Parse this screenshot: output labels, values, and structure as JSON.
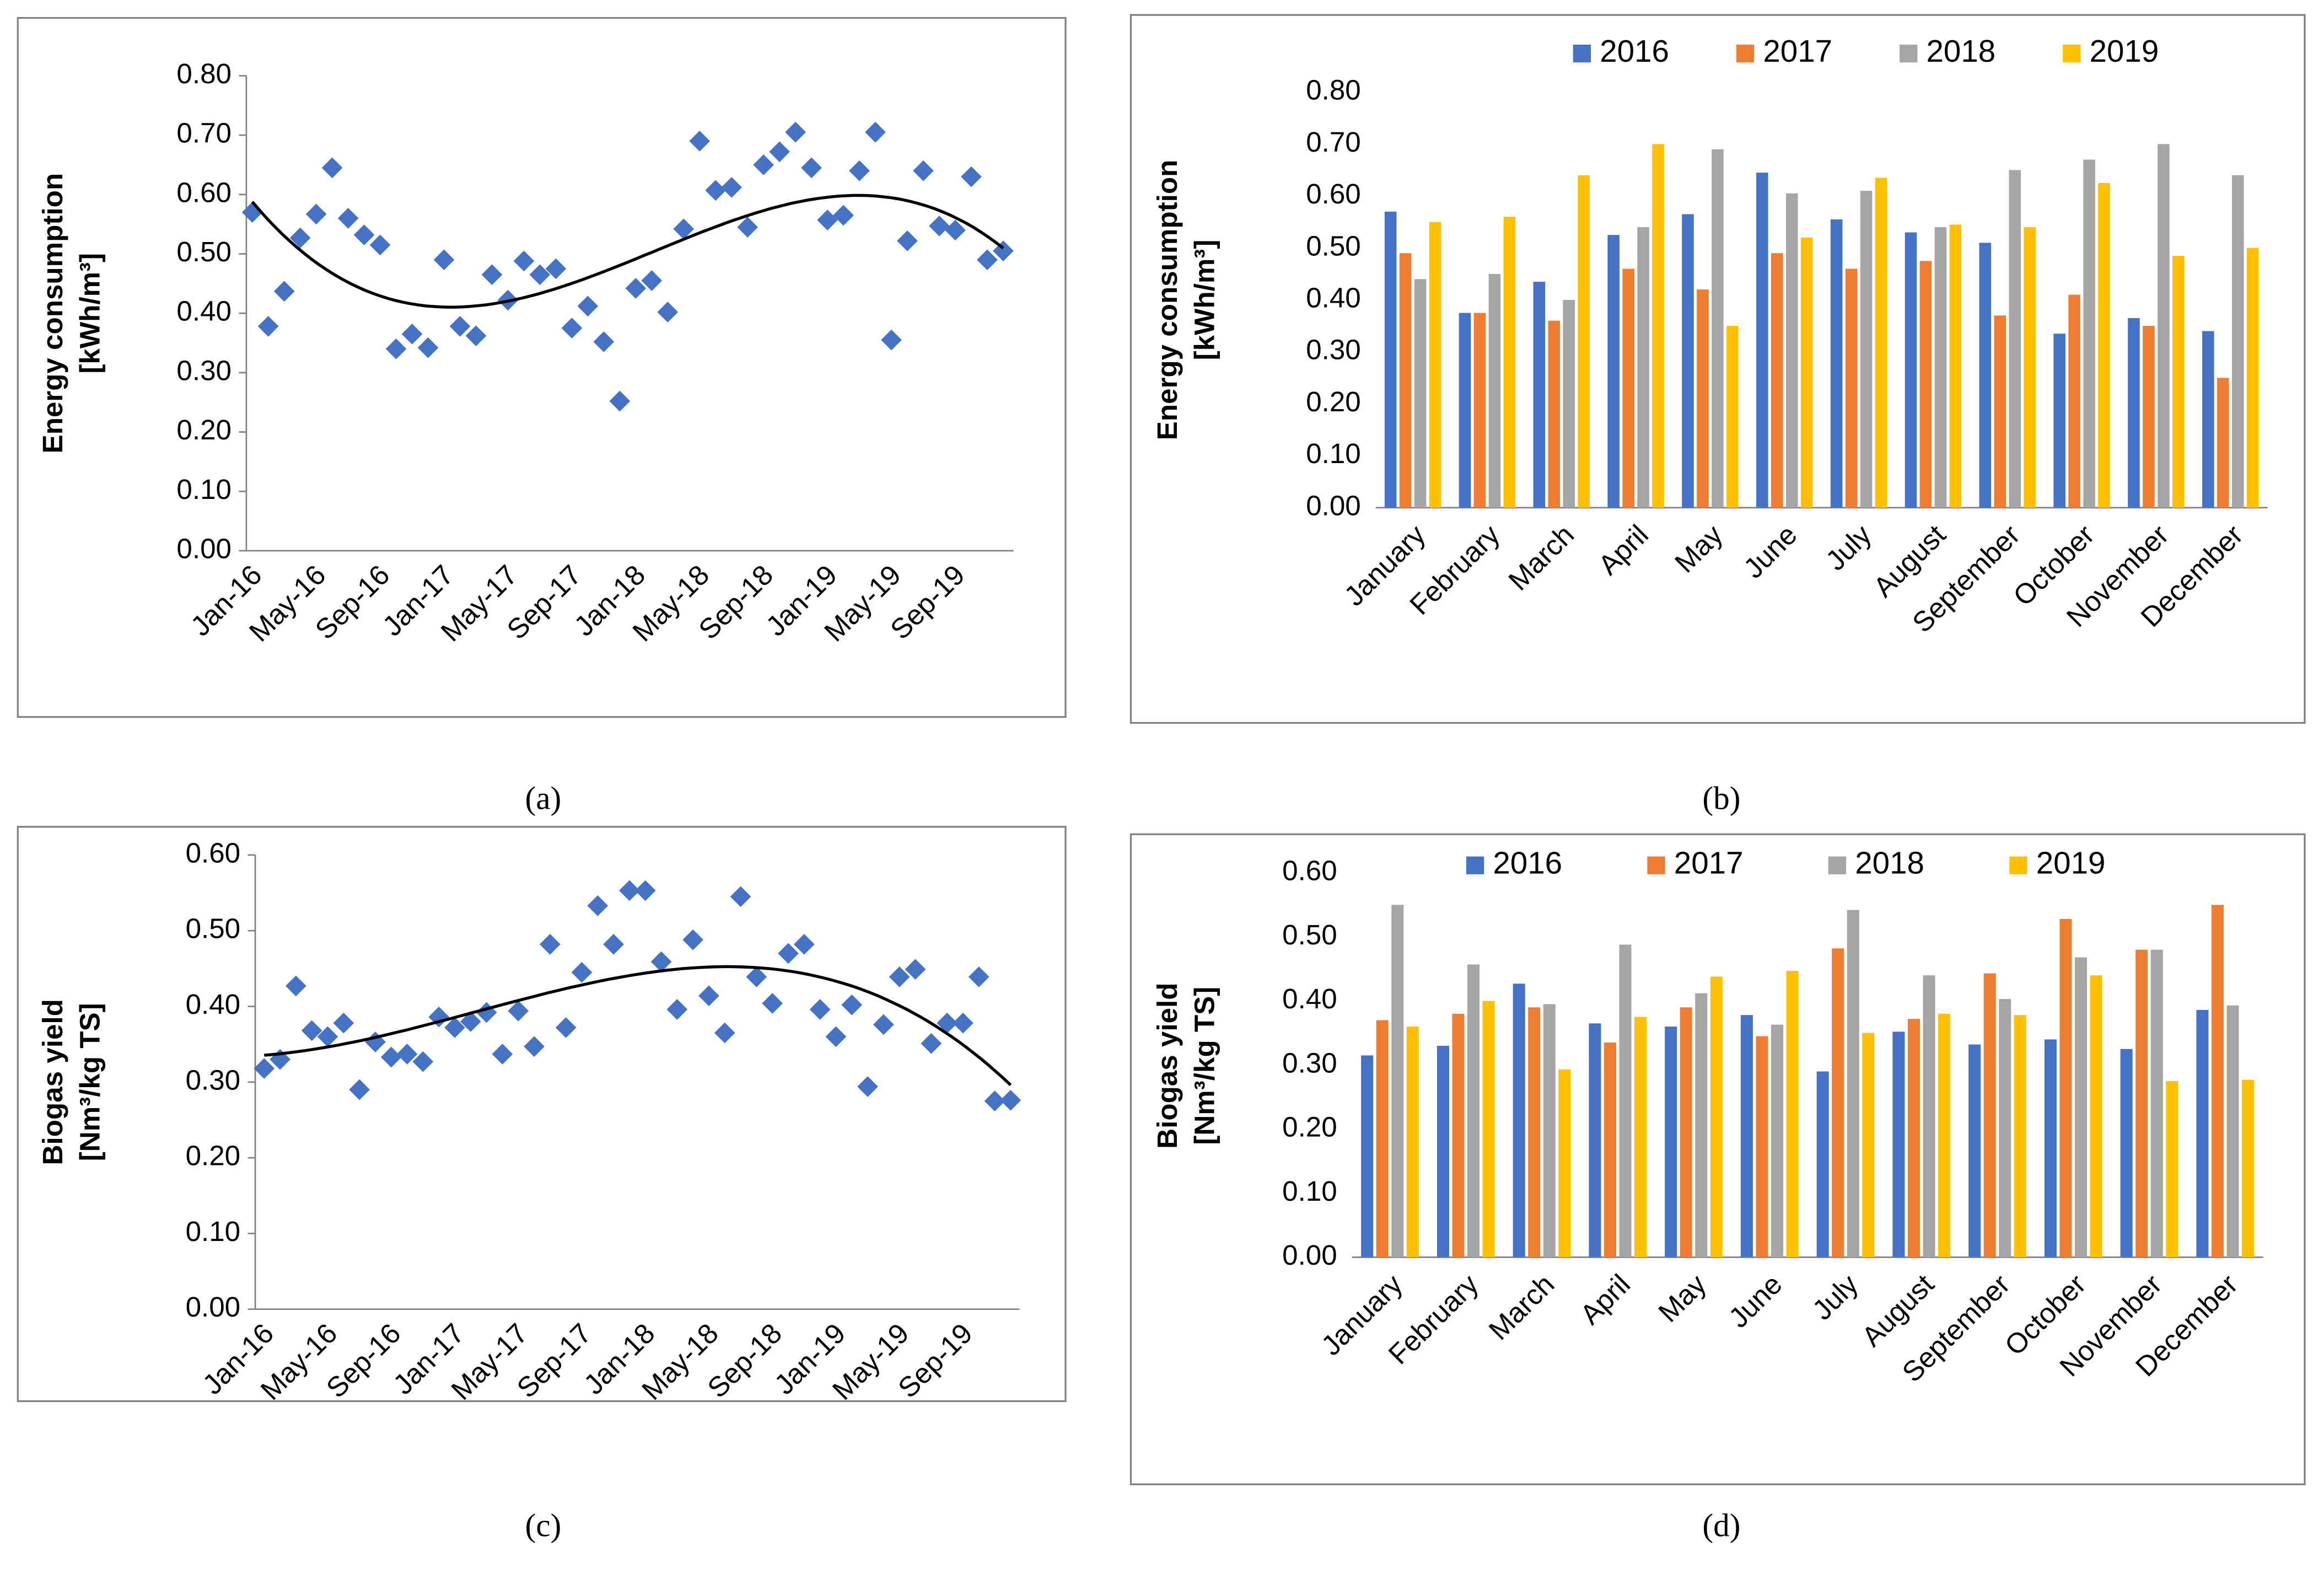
{
  "chart_data": [
    {
      "type": "scatter",
      "caption": "(a)",
      "ylabel": [
        "Energy consumption",
        "[kWh/m³]"
      ],
      "color": "#4472c4",
      "trendline": {
        "order": 3
      },
      "categories": [
        "Jan-16",
        null,
        null,
        null,
        "May-16",
        null,
        null,
        null,
        "Sep-16",
        null,
        null,
        null,
        "Jan-17",
        null,
        null,
        null,
        "May-17",
        null,
        null,
        null,
        "Sep-17",
        null,
        null,
        null,
        "Jan-18",
        null,
        null,
        null,
        "May-18",
        null,
        null,
        null,
        "Sep-18",
        null,
        null,
        null,
        "Jan-19",
        null,
        null,
        null,
        "May-19",
        null,
        null,
        null,
        "Sep-19",
        null,
        null,
        null
      ],
      "values": [
        0.57,
        0.378,
        0.437,
        0.527,
        0.567,
        0.645,
        0.56,
        0.532,
        0.515,
        0.34,
        0.365,
        0.342,
        0.49,
        0.378,
        0.362,
        0.465,
        0.422,
        0.488,
        0.465,
        0.475,
        0.375,
        0.412,
        0.352,
        0.252,
        0.442,
        0.455,
        0.402,
        0.542,
        0.69,
        0.607,
        0.612,
        0.545,
        0.65,
        0.672,
        0.705,
        0.645,
        0.557,
        0.565,
        0.64,
        0.705,
        0.355,
        0.522,
        0.64,
        0.547,
        0.54,
        0.63,
        0.49,
        0.505
      ],
      "ylim": [
        0,
        0.8
      ],
      "yticks": [
        {
          "value": 0,
          "label": "0.00"
        },
        {
          "value": 0.1,
          "label": "0.10"
        },
        {
          "value": 0.2,
          "label": "0.20"
        },
        {
          "value": 0.3,
          "label": "0.30"
        },
        {
          "value": 0.4,
          "label": "0.40"
        },
        {
          "value": 0.5,
          "label": "0.50"
        },
        {
          "value": 0.6,
          "label": "0.60"
        },
        {
          "value": 0.7,
          "label": "0.70"
        },
        {
          "value": 0.8,
          "label": "0.80"
        }
      ]
    },
    {
      "type": "bar",
      "caption": "(b)",
      "ylabel": [
        "Energy consumption",
        "[kWh/m³]"
      ],
      "grid": false,
      "legend": "top",
      "categories": [
        "January",
        "February",
        "March",
        "April",
        "May",
        "June",
        "July",
        "August",
        "September",
        "October",
        "November",
        "December"
      ],
      "series": [
        {
          "name": "2016",
          "color": "#4472c4",
          "values": [
            0.57,
            0.375,
            0.435,
            0.525,
            0.565,
            0.645,
            0.555,
            0.53,
            0.51,
            0.335,
            0.365,
            0.34
          ]
        },
        {
          "name": "2017",
          "color": "#ed7d31",
          "values": [
            0.49,
            0.375,
            0.36,
            0.46,
            0.42,
            0.49,
            0.46,
            0.475,
            0.37,
            0.41,
            0.35,
            0.25
          ]
        },
        {
          "name": "2018",
          "color": "#a5a5a5",
          "values": [
            0.44,
            0.45,
            0.4,
            0.54,
            0.69,
            0.605,
            0.61,
            0.54,
            0.65,
            0.67,
            0.7,
            0.64
          ]
        },
        {
          "name": "2019",
          "color": "#ffc000",
          "values": [
            0.55,
            0.56,
            0.64,
            0.7,
            0.35,
            0.52,
            0.635,
            0.545,
            0.54,
            0.625,
            0.485,
            0.5
          ]
        }
      ],
      "ylim": [
        0,
        0.8
      ],
      "yticks": [
        {
          "value": 0,
          "label": "0.00"
        },
        {
          "value": 0.1,
          "label": "0.10"
        },
        {
          "value": 0.2,
          "label": "0.20"
        },
        {
          "value": 0.3,
          "label": "0.30"
        },
        {
          "value": 0.4,
          "label": "0.40"
        },
        {
          "value": 0.5,
          "label": "0.50"
        },
        {
          "value": 0.6,
          "label": "0.60"
        },
        {
          "value": 0.7,
          "label": "0.70"
        },
        {
          "value": 0.8,
          "label": "0.80"
        }
      ]
    },
    {
      "type": "scatter",
      "caption": "(c)",
      "ylabel": [
        "Biogas yield",
        "[Nm³/kg TS]"
      ],
      "color": "#4472c4",
      "trendline": {
        "order": 3
      },
      "categories": [
        "Jan-16",
        null,
        null,
        null,
        "May-16",
        null,
        null,
        null,
        "Sep-16",
        null,
        null,
        null,
        "Jan-17",
        null,
        null,
        null,
        "May-17",
        null,
        null,
        null,
        "Sep-17",
        null,
        null,
        null,
        "Jan-18",
        null,
        null,
        null,
        "May-18",
        null,
        null,
        null,
        "Sep-18",
        null,
        null,
        null,
        "Jan-19",
        null,
        null,
        null,
        "May-19",
        null,
        null,
        null,
        "Sep-19",
        null,
        null,
        null
      ],
      "values": [
        0.318,
        0.33,
        0.427,
        0.368,
        0.36,
        0.378,
        0.29,
        0.353,
        0.333,
        0.337,
        0.327,
        0.386,
        0.372,
        0.38,
        0.392,
        0.337,
        0.394,
        0.347,
        0.482,
        0.372,
        0.445,
        0.533,
        0.482,
        0.553,
        0.553,
        0.459,
        0.396,
        0.488,
        0.414,
        0.365,
        0.545,
        0.439,
        0.404,
        0.47,
        0.482,
        0.396,
        0.36,
        0.402,
        0.294,
        0.376,
        0.439,
        0.449,
        0.351,
        0.378,
        0.378,
        0.439,
        0.275,
        0.276
      ],
      "ylim": [
        0,
        0.6
      ],
      "yticks": [
        {
          "value": 0,
          "label": "0.00"
        },
        {
          "value": 0.1,
          "label": "0.10"
        },
        {
          "value": 0.2,
          "label": "0.20"
        },
        {
          "value": 0.3,
          "label": "0.30"
        },
        {
          "value": 0.4,
          "label": "0.40"
        },
        {
          "value": 0.5,
          "label": "0.50"
        },
        {
          "value": 0.6,
          "label": "0.60"
        }
      ]
    },
    {
      "type": "bar",
      "caption": "(d)",
      "ylabel": [
        "Biogas yield",
        "[Nm³/kg TS]"
      ],
      "grid": false,
      "legend": "top",
      "categories": [
        "January",
        "February",
        "March",
        "April",
        "May",
        "June",
        "July",
        "August",
        "September",
        "October",
        "November",
        "December"
      ],
      "series": [
        {
          "name": "2016",
          "color": "#4472c4",
          "values": [
            0.315,
            0.33,
            0.427,
            0.365,
            0.36,
            0.378,
            0.29,
            0.352,
            0.332,
            0.34,
            0.325,
            0.386
          ]
        },
        {
          "name": "2017",
          "color": "#ed7d31",
          "values": [
            0.37,
            0.38,
            0.39,
            0.335,
            0.39,
            0.345,
            0.482,
            0.372,
            0.443,
            0.528,
            0.48,
            0.55
          ]
        },
        {
          "name": "2018",
          "color": "#a5a5a5",
          "values": [
            0.55,
            0.457,
            0.395,
            0.488,
            0.412,
            0.363,
            0.542,
            0.44,
            0.403,
            0.468,
            0.48,
            0.393
          ]
        },
        {
          "name": "2019",
          "color": "#ffc000",
          "values": [
            0.36,
            0.4,
            0.293,
            0.375,
            0.438,
            0.447,
            0.35,
            0.38,
            0.378,
            0.44,
            0.275,
            0.277
          ]
        }
      ],
      "ylim": [
        0,
        0.6
      ],
      "yticks": [
        {
          "value": 0,
          "label": "0.00"
        },
        {
          "value": 0.1,
          "label": "0.10"
        },
        {
          "value": 0.2,
          "label": "0.20"
        },
        {
          "value": 0.3,
          "label": "0.30"
        },
        {
          "value": 0.4,
          "label": "0.40"
        },
        {
          "value": 0.5,
          "label": "0.50"
        },
        {
          "value": 0.6,
          "label": "0.60"
        }
      ]
    }
  ]
}
